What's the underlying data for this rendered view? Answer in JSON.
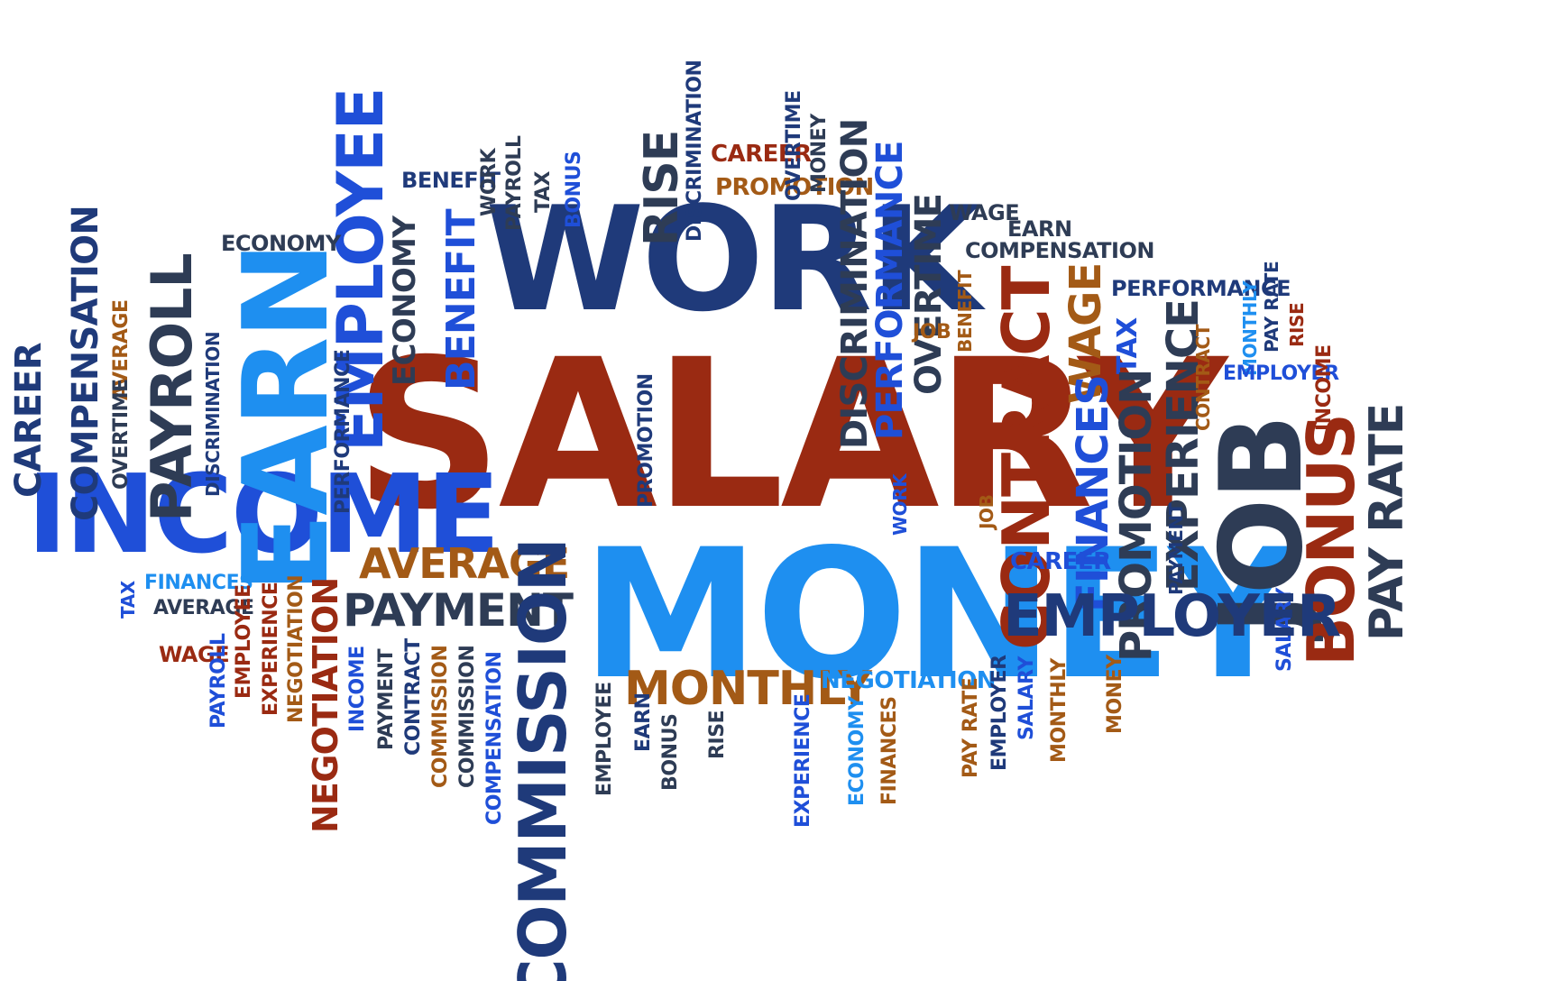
{
  "palette": {
    "rust": "#9a2a12",
    "navy": "#1f3a7a",
    "blue": "#1f4fd8",
    "sky": "#1e8ff0",
    "slate": "#2e3c55",
    "brown": "#a35a16"
  },
  "words": [
    {
      "id": "salary-main",
      "text": "SALARY",
      "color": "rust",
      "size": 228,
      "rot": 0,
      "scaleX": 1.0
    },
    {
      "id": "money-main",
      "text": "MONEY",
      "color": "sky",
      "size": 198,
      "rot": 0,
      "scaleX": 1.0
    },
    {
      "id": "work-main",
      "text": "WORK",
      "color": "navy",
      "size": 160,
      "rot": 0,
      "scaleX": 1.0
    },
    {
      "id": "income-main",
      "text": "INCOME",
      "color": "blue",
      "size": 120,
      "rot": 0,
      "scaleX": 1.0
    },
    {
      "id": "earn-main",
      "text": "EARN",
      "color": "sky",
      "size": 130,
      "rot": -90,
      "scaleX": 1.0
    },
    {
      "id": "employee-big",
      "text": "EMPLOYEE",
      "color": "blue",
      "size": 70,
      "rot": -90,
      "scaleX": 1.0
    },
    {
      "id": "payroll-big",
      "text": "PAYROLL",
      "color": "slate",
      "size": 62,
      "rot": -90,
      "scaleX": 1.0
    },
    {
      "id": "compensation-left",
      "text": "COMPENSATION",
      "color": "navy",
      "size": 40,
      "rot": -90,
      "scaleX": 1.0
    },
    {
      "id": "career-left",
      "text": "CAREER",
      "color": "navy",
      "size": 40,
      "rot": -90,
      "scaleX": 1.0
    },
    {
      "id": "average-left",
      "text": "AVERAGE",
      "color": "brown",
      "size": 22,
      "rot": -90,
      "scaleX": 1.0
    },
    {
      "id": "overtime-left",
      "text": "OVERTIME",
      "color": "slate",
      "size": 22,
      "rot": -90,
      "scaleX": 1.0
    },
    {
      "id": "discrimination-left",
      "text": "DISCRIMINATION",
      "color": "navy",
      "size": 20,
      "rot": -90,
      "scaleX": 1.0
    },
    {
      "id": "economy-left",
      "text": "ECONOMY",
      "color": "slate",
      "size": 24,
      "rot": 0,
      "scaleX": 1.0
    },
    {
      "id": "economy-vert",
      "text": "ECONOMY",
      "color": "slate",
      "size": 34,
      "rot": -90,
      "scaleX": 1.0
    },
    {
      "id": "benefit-top",
      "text": "BENEFIT",
      "color": "navy",
      "size": 24,
      "rot": 0,
      "scaleX": 1.0
    },
    {
      "id": "benefit-vert",
      "text": "BENEFIT",
      "color": "blue",
      "size": 44,
      "rot": -90,
      "scaleX": 1.0
    },
    {
      "id": "work-small",
      "text": "WORK",
      "color": "slate",
      "size": 22,
      "rot": -90,
      "scaleX": 1.0
    },
    {
      "id": "payroll-small",
      "text": "PAYROLL",
      "color": "slate",
      "size": 22,
      "rot": -90,
      "scaleX": 1.0
    },
    {
      "id": "tax-small",
      "text": "TAX",
      "color": "slate",
      "size": 22,
      "rot": -90,
      "scaleX": 1.0
    },
    {
      "id": "bonus-small",
      "text": "BONUS",
      "color": "blue",
      "size": 22,
      "rot": -90,
      "scaleX": 1.0
    },
    {
      "id": "rise-top",
      "text": "RISE",
      "color": "slate",
      "size": 52,
      "rot": -90,
      "scaleX": 1.0
    },
    {
      "id": "discrimination-top",
      "text": "DISCRIMINATION",
      "color": "navy",
      "size": 22,
      "rot": -90,
      "scaleX": 1.0
    },
    {
      "id": "career-top",
      "text": "CAREER",
      "color": "rust",
      "size": 26,
      "rot": 0,
      "scaleX": 1.0
    },
    {
      "id": "promotion-top",
      "text": "PROMOTION",
      "color": "brown",
      "size": 26,
      "rot": 0,
      "scaleX": 1.0
    },
    {
      "id": "overtime-top",
      "text": "OVERTIME",
      "color": "navy",
      "size": 22,
      "rot": -90,
      "scaleX": 1.0
    },
    {
      "id": "money-top",
      "text": "MONEY",
      "color": "slate",
      "size": 22,
      "rot": -90,
      "scaleX": 1.0
    },
    {
      "id": "discrimination-mid",
      "text": "DISCRIMINATION",
      "color": "slate",
      "size": 40,
      "rot": -90,
      "scaleX": 1.0
    },
    {
      "id": "performance-mid",
      "text": "PERFORMANCE",
      "color": "blue",
      "size": 40,
      "rot": -90,
      "scaleX": 1.0
    },
    {
      "id": "overtime-mid",
      "text": "OVERTIME",
      "color": "slate",
      "size": 40,
      "rot": -90,
      "scaleX": 1.0
    },
    {
      "id": "wage-top",
      "text": "WAGE",
      "color": "slate",
      "size": 24,
      "rot": 0,
      "scaleX": 1.0
    },
    {
      "id": "earn-top",
      "text": "EARN",
      "color": "slate",
      "size": 24,
      "rot": 0,
      "scaleX": 1.0
    },
    {
      "id": "compensation-top",
      "text": "COMPENSATION",
      "color": "slate",
      "size": 24,
      "rot": 0,
      "scaleX": 1.0
    },
    {
      "id": "job-small",
      "text": "JOB",
      "color": "brown",
      "size": 22,
      "rot": 0,
      "scaleX": 1.0
    },
    {
      "id": "benefit-small",
      "text": "BENEFIT",
      "color": "brown",
      "size": 20,
      "rot": -90,
      "scaleX": 1.0
    },
    {
      "id": "contract-big",
      "text": "CONTRACT",
      "color": "rust",
      "size": 72,
      "rot": -90,
      "scaleX": 1.0
    },
    {
      "id": "wage-vert",
      "text": "WAGE",
      "color": "brown",
      "size": 48,
      "rot": -90,
      "scaleX": 1.0
    },
    {
      "id": "performance-right",
      "text": "PERFORMANCE",
      "color": "navy",
      "size": 24,
      "rot": 0,
      "scaleX": 1.0
    },
    {
      "id": "monthly-right",
      "text": "MONTHLY",
      "color": "sky",
      "size": 20,
      "rot": -90,
      "scaleX": 1.0
    },
    {
      "id": "payrate-small",
      "text": "PAY RATE",
      "color": "navy",
      "size": 20,
      "rot": -90,
      "scaleX": 1.0
    },
    {
      "id": "rise-right",
      "text": "RISE",
      "color": "rust",
      "size": 20,
      "rot": -90,
      "scaleX": 1.0
    },
    {
      "id": "tax-right",
      "text": "TAX",
      "color": "blue",
      "size": 30,
      "rot": -90,
      "scaleX": 1.0
    },
    {
      "id": "experience-right",
      "text": "EXPERIENCE",
      "color": "slate",
      "size": 48,
      "rot": -90,
      "scaleX": 1.0
    },
    {
      "id": "contract-small",
      "text": "CONTRACT",
      "color": "brown",
      "size": 20,
      "rot": -90,
      "scaleX": 1.0
    },
    {
      "id": "employer-small",
      "text": "EMPLOYER",
      "color": "blue",
      "size": 22,
      "rot": 0,
      "scaleX": 1.0
    },
    {
      "id": "income-small",
      "text": "INCOME",
      "color": "rust",
      "size": 22,
      "rot": -90,
      "scaleX": 1.0
    },
    {
      "id": "finances-right",
      "text": "FINANCES",
      "color": "blue",
      "size": 48,
      "rot": -90,
      "scaleX": 1.0
    },
    {
      "id": "promotion-right",
      "text": "PROMOTION",
      "color": "slate",
      "size": 48,
      "rot": -90,
      "scaleX": 1.0
    },
    {
      "id": "job-big",
      "text": "JOB",
      "color": "slate",
      "size": 126,
      "rot": -90,
      "scaleX": 1.0
    },
    {
      "id": "bonus-big",
      "text": "BONUS",
      "color": "rust",
      "size": 72,
      "rot": -90,
      "scaleX": 1.0
    },
    {
      "id": "payrate-big",
      "text": "PAY RATE",
      "color": "slate",
      "size": 52,
      "rot": -90,
      "scaleX": 1.0
    },
    {
      "id": "payment-right",
      "text": "PAYMENT",
      "color": "navy",
      "size": 20,
      "rot": -90,
      "scaleX": 1.0
    },
    {
      "id": "salary-small",
      "text": "SALARY",
      "color": "blue",
      "size": 22,
      "rot": -90,
      "scaleX": 1.0
    },
    {
      "id": "employer-big",
      "text": "EMPLOYER",
      "color": "navy",
      "size": 64,
      "rot": 0,
      "scaleX": 1.0
    },
    {
      "id": "career-mid",
      "text": "CAREER",
      "color": "blue",
      "size": 26,
      "rot": 0,
      "scaleX": 1.0
    },
    {
      "id": "job-mid",
      "text": "JOB",
      "color": "brown",
      "size": 20,
      "rot": -90,
      "scaleX": 1.0
    },
    {
      "id": "work-mid",
      "text": "WORK",
      "color": "blue",
      "size": 20,
      "rot": -90,
      "scaleX": 1.0
    },
    {
      "id": "performance-left",
      "text": "PERFORMANCE",
      "color": "navy",
      "size": 22,
      "rot": -90,
      "scaleX": 1.0
    },
    {
      "id": "promotion-mid",
      "text": "PROMOTION",
      "color": "navy",
      "size": 22,
      "rot": -90,
      "scaleX": 1.0
    },
    {
      "id": "average-mid",
      "text": "AVERAGE",
      "color": "brown",
      "size": 46,
      "rot": 0,
      "scaleX": 1.0
    },
    {
      "id": "payment-mid",
      "text": "PAYMENT",
      "color": "slate",
      "size": 50,
      "rot": 0,
      "scaleX": 1.0
    },
    {
      "id": "commission-big",
      "text": "COMMISSION",
      "color": "navy",
      "size": 72,
      "rot": -90,
      "scaleX": 1.0
    },
    {
      "id": "monthly-mid",
      "text": "MONTHLY",
      "color": "brown",
      "size": 52,
      "rot": 0,
      "scaleX": 1.0
    },
    {
      "id": "negotiation-mid",
      "text": "NEGOTIATION",
      "color": "sky",
      "size": 26,
      "rot": 0,
      "scaleX": 1.0
    },
    {
      "id": "finances-left",
      "text": "FINANCES",
      "color": "sky",
      "size": 22,
      "rot": 0,
      "scaleX": 1.0
    },
    {
      "id": "tax-left",
      "text": "TAX",
      "color": "blue",
      "size": 20,
      "rot": -90,
      "scaleX": 1.0
    },
    {
      "id": "average-left2",
      "text": "AVERAGE",
      "color": "slate",
      "size": 22,
      "rot": 0,
      "scaleX": 1.0
    },
    {
      "id": "wage-left",
      "text": "WAGE",
      "color": "rust",
      "size": 24,
      "rot": 0,
      "scaleX": 1.0
    },
    {
      "id": "employee-left",
      "text": "EMPLOYEE",
      "color": "rust",
      "size": 22,
      "rot": -90,
      "scaleX": 1.0
    },
    {
      "id": "payroll-left",
      "text": "PAYROLL",
      "color": "blue",
      "size": 22,
      "rot": -90,
      "scaleX": 1.0
    },
    {
      "id": "experience-left",
      "text": "EXPERIENCE",
      "color": "rust",
      "size": 22,
      "rot": -90,
      "scaleX": 1.0
    },
    {
      "id": "negotiation-left-small",
      "text": "NEGOTIATION",
      "color": "brown",
      "size": 22,
      "rot": -90,
      "scaleX": 1.0
    },
    {
      "id": "negotiation-left-big",
      "text": "NEGOTIATION",
      "color": "rust",
      "size": 38,
      "rot": -90,
      "scaleX": 1.0
    },
    {
      "id": "income-left",
      "text": "INCOME",
      "color": "blue",
      "size": 22,
      "rot": -90,
      "scaleX": 1.0
    },
    {
      "id": "payment-left",
      "text": "PAYMENT",
      "color": "slate",
      "size": 22,
      "rot": -90,
      "scaleX": 1.0
    },
    {
      "id": "contract-left",
      "text": "CONTRACT",
      "color": "navy",
      "size": 22,
      "rot": -90,
      "scaleX": 1.0
    },
    {
      "id": "commission-left1",
      "text": "COMMISSION",
      "color": "brown",
      "size": 22,
      "rot": -90,
      "scaleX": 1.0
    },
    {
      "id": "commission-left2",
      "text": "COMMISSION",
      "color": "slate",
      "size": 22,
      "rot": -90,
      "scaleX": 1.0
    },
    {
      "id": "compensation-bottom",
      "text": "COMPENSATION",
      "color": "blue",
      "size": 22,
      "rot": -90,
      "scaleX": 1.0
    },
    {
      "id": "employee-bottom",
      "text": "EMPLOYEE",
      "color": "slate",
      "size": 22,
      "rot": -90,
      "scaleX": 1.0
    },
    {
      "id": "earn-bottom",
      "text": "EARN",
      "color": "navy",
      "size": 22,
      "rot": -90,
      "scaleX": 1.0
    },
    {
      "id": "bonus-bottom",
      "text": "BONUS",
      "color": "slate",
      "size": 22,
      "rot": -90,
      "scaleX": 1.0
    },
    {
      "id": "rise-bottom",
      "text": "RISE",
      "color": "slate",
      "size": 22,
      "rot": -90,
      "scaleX": 1.0
    },
    {
      "id": "experience-bottom",
      "text": "EXPERIENCE",
      "color": "blue",
      "size": 22,
      "rot": -90,
      "scaleX": 1.0
    },
    {
      "id": "economy-bottom",
      "text": "ECONOMY",
      "color": "sky",
      "size": 22,
      "rot": -90,
      "scaleX": 1.0
    },
    {
      "id": "finances-bottom",
      "text": "FINANCES",
      "color": "brown",
      "size": 22,
      "rot": -90,
      "scaleX": 1.0
    },
    {
      "id": "payrate-bottom",
      "text": "PAY RATE",
      "color": "brown",
      "size": 22,
      "rot": -90,
      "scaleX": 1.0
    },
    {
      "id": "employer-bottom",
      "text": "EMPLOYER",
      "color": "navy",
      "size": 22,
      "rot": -90,
      "scaleX": 1.0
    },
    {
      "id": "salary-bottom",
      "text": "SALARY",
      "color": "blue",
      "size": 22,
      "rot": -90,
      "scaleX": 1.0
    },
    {
      "id": "monthly-bottom",
      "text": "MONTHLY",
      "color": "brown",
      "size": 22,
      "rot": -90,
      "scaleX": 1.0
    },
    {
      "id": "money-bottom",
      "text": "MONEY",
      "color": "brown",
      "size": 22,
      "rot": -90,
      "scaleX": 1.0
    }
  ]
}
